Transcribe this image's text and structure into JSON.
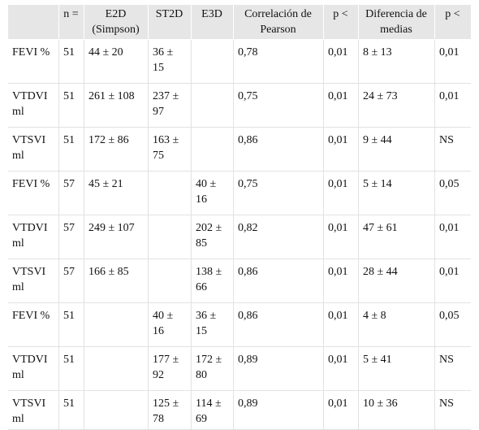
{
  "headers": [
    "",
    "n =",
    "E2D (Simpson)",
    "ST2D",
    "E3D",
    "Correlación de Pearson",
    "p <",
    "Diferencia de medias",
    "p <"
  ],
  "rows": [
    [
      "FEVI %",
      "51",
      "44 ± 20",
      "36 ± 15",
      "",
      "0,78",
      "0,01",
      "8 ± 13",
      "0,01"
    ],
    [
      "VTDVI ml",
      "51",
      "261 ± 108",
      "237 ± 97",
      "",
      "0,75",
      "0,01",
      "24 ± 73",
      "0,01"
    ],
    [
      "VTSVI ml",
      "51",
      "172 ± 86",
      "163 ± 75",
      "",
      "0,86",
      "0,01",
      "9 ± 44",
      "NS"
    ],
    [
      "FEVI %",
      "57",
      "45 ± 21",
      "",
      "40 ± 16",
      "0,75",
      "0,01",
      "5 ± 14",
      "0,05"
    ],
    [
      "VTDVI ml",
      "57",
      "249 ± 107",
      "",
      "202 ± 85",
      "0,82",
      "0,01",
      "47 ± 61",
      "0,01"
    ],
    [
      "VTSVI ml",
      "57",
      "166 ± 85",
      "",
      "138 ± 66",
      "0,86",
      "0,01",
      "28 ± 44",
      "0,01"
    ],
    [
      "FEVI %",
      "51",
      "",
      "40 ± 16",
      "36 ± 15",
      "0,86",
      "0,01",
      "4 ± 8",
      "0,05"
    ],
    [
      "VTDVI ml",
      "51",
      "",
      "177 ± 92",
      "172 ± 80",
      "0,89",
      "0,01",
      "5 ± 41",
      "NS"
    ],
    [
      "VTSVI ml",
      "51",
      "",
      "125 ± 78",
      "114 ± 69",
      "0,89",
      "0,01",
      "10 ± 36",
      "NS"
    ]
  ]
}
